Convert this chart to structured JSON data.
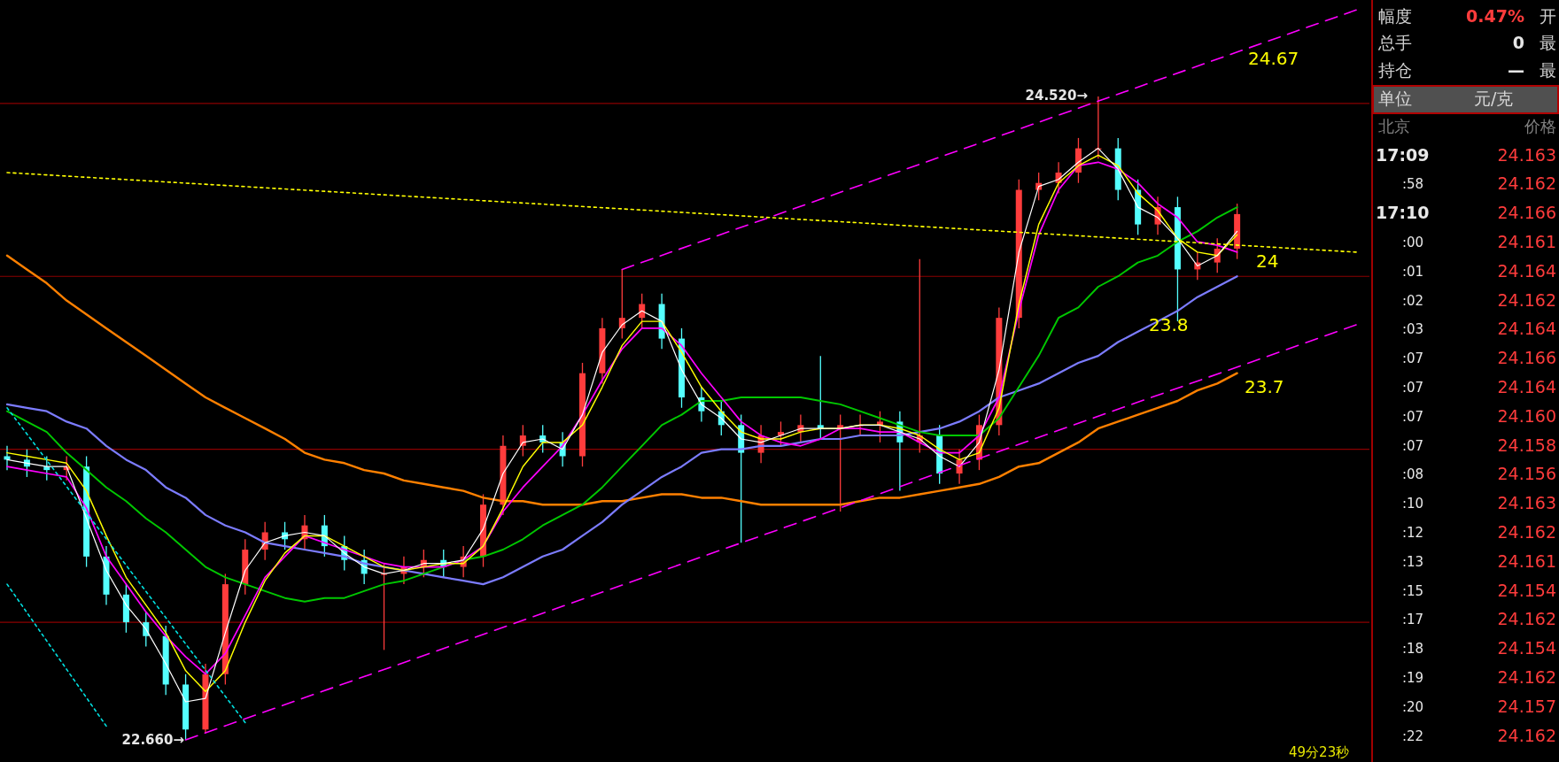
{
  "chart_data": [
    {
      "type": "candlestick",
      "categories": [
        null,
        null,
        null,
        null,
        null,
        null,
        null,
        null,
        null,
        null,
        null,
        null,
        null,
        null,
        null,
        null,
        null,
        null,
        null,
        null,
        null,
        null,
        null,
        null,
        null,
        null,
        null,
        null,
        null,
        null,
        null,
        null,
        null,
        null,
        null,
        null,
        null,
        null,
        null,
        null,
        null,
        null,
        null,
        null,
        null,
        null,
        null,
        null,
        null,
        null,
        null,
        null,
        null,
        null,
        null,
        null,
        null,
        null,
        null,
        null,
        null,
        null,
        null,
        null,
        null,
        null,
        null,
        null,
        null
      ],
      "ohlc": [
        [
          23.48,
          23.51,
          23.44,
          23.47
        ],
        [
          23.47,
          23.5,
          23.42,
          23.45
        ],
        [
          23.45,
          23.48,
          23.41,
          23.44
        ],
        [
          23.44,
          23.48,
          23.41,
          23.45
        ],
        [
          23.45,
          23.48,
          23.16,
          23.19
        ],
        [
          23.19,
          23.22,
          23.05,
          23.08
        ],
        [
          23.08,
          23.11,
          22.97,
          23.0
        ],
        [
          23.0,
          23.03,
          22.93,
          22.96
        ],
        [
          22.96,
          22.99,
          22.79,
          22.82
        ],
        [
          22.82,
          22.85,
          22.66,
          22.69
        ],
        [
          22.69,
          22.88,
          22.68,
          22.85
        ],
        [
          22.85,
          23.14,
          22.82,
          23.11
        ],
        [
          23.11,
          23.24,
          23.08,
          23.21
        ],
        [
          23.21,
          23.29,
          23.18,
          23.26
        ],
        [
          23.26,
          23.29,
          23.21,
          23.24
        ],
        [
          23.24,
          23.31,
          23.21,
          23.28
        ],
        [
          23.28,
          23.31,
          23.19,
          23.22
        ],
        [
          23.22,
          23.25,
          23.15,
          23.18
        ],
        [
          23.18,
          23.21,
          23.11,
          23.14
        ],
        [
          23.14,
          23.17,
          22.92,
          23.14
        ],
        [
          23.14,
          23.19,
          23.11,
          23.16
        ],
        [
          23.16,
          23.21,
          23.13,
          23.18
        ],
        [
          23.18,
          23.21,
          23.13,
          23.16
        ],
        [
          23.16,
          23.22,
          23.13,
          23.19
        ],
        [
          23.19,
          23.37,
          23.16,
          23.34
        ],
        [
          23.34,
          23.54,
          23.31,
          23.51
        ],
        [
          23.51,
          23.57,
          23.48,
          23.54
        ],
        [
          23.54,
          23.57,
          23.49,
          23.52
        ],
        [
          23.52,
          23.55,
          23.45,
          23.48
        ],
        [
          23.48,
          23.75,
          23.45,
          23.72
        ],
        [
          23.72,
          23.88,
          23.69,
          23.85
        ],
        [
          23.85,
          24.02,
          23.82,
          23.88
        ],
        [
          23.88,
          23.95,
          23.85,
          23.92
        ],
        [
          23.92,
          23.95,
          23.79,
          23.82
        ],
        [
          23.82,
          23.85,
          23.62,
          23.65
        ],
        [
          23.65,
          23.68,
          23.58,
          23.61
        ],
        [
          23.61,
          23.64,
          23.54,
          23.57
        ],
        [
          23.57,
          23.6,
          23.23,
          23.49
        ],
        [
          23.49,
          23.57,
          23.46,
          23.54
        ],
        [
          23.54,
          23.58,
          23.51,
          23.55
        ],
        [
          23.55,
          23.6,
          23.52,
          23.57
        ],
        [
          23.57,
          23.77,
          23.53,
          23.56
        ],
        [
          23.56,
          23.6,
          23.32,
          23.57
        ],
        [
          23.57,
          23.6,
          23.54,
          23.57
        ],
        [
          23.57,
          23.61,
          23.52,
          23.58
        ],
        [
          23.58,
          23.61,
          23.38,
          23.52
        ],
        [
          23.52,
          24.05,
          23.49,
          23.54
        ],
        [
          23.54,
          23.57,
          23.4,
          23.43
        ],
        [
          23.43,
          23.5,
          23.4,
          23.47
        ],
        [
          23.47,
          23.6,
          23.44,
          23.57
        ],
        [
          23.57,
          23.91,
          23.54,
          23.88
        ],
        [
          23.88,
          24.28,
          23.85,
          24.25
        ],
        [
          24.25,
          24.3,
          24.22,
          24.27
        ],
        [
          24.27,
          24.33,
          24.24,
          24.3
        ],
        [
          24.3,
          24.4,
          24.27,
          24.37
        ],
        [
          24.37,
          24.52,
          24.34,
          24.37
        ],
        [
          24.37,
          24.4,
          24.22,
          24.25
        ],
        [
          24.25,
          24.28,
          24.12,
          24.15
        ],
        [
          24.15,
          24.23,
          24.12,
          24.2
        ],
        [
          24.2,
          24.23,
          23.87,
          24.02
        ],
        [
          24.02,
          24.07,
          23.99,
          24.04
        ],
        [
          24.04,
          24.11,
          24.01,
          24.08
        ],
        [
          24.08,
          24.21,
          24.05,
          24.18
        ],
        null,
        null,
        null,
        null,
        null,
        null
      ],
      "series": [
        {
          "type": "line",
          "color": "#ff8000",
          "values": [
            24.06,
            24.02,
            23.98,
            23.93,
            23.89,
            23.85,
            23.81,
            23.77,
            23.73,
            23.69,
            23.65,
            23.62,
            23.59,
            23.56,
            23.53,
            23.49,
            23.47,
            23.46,
            23.44,
            23.43,
            23.41,
            23.4,
            23.39,
            23.38,
            23.36,
            23.35,
            23.35,
            23.34,
            23.34,
            23.34,
            23.35,
            23.35,
            23.36,
            23.37,
            23.37,
            23.36,
            23.36,
            23.35,
            23.34,
            23.34,
            23.34,
            23.34,
            23.34,
            23.35,
            23.36,
            23.36,
            23.37,
            23.38,
            23.39,
            23.4,
            23.42,
            23.45,
            23.46,
            23.49,
            23.52,
            23.56,
            23.58,
            23.6,
            23.62,
            23.64,
            23.67,
            23.69,
            23.72,
            null,
            null,
            null,
            null,
            null,
            null
          ]
        },
        {
          "type": "line",
          "color": "#7c7cff",
          "values": [
            23.63,
            23.62,
            23.61,
            23.58,
            23.56,
            23.51,
            23.47,
            23.44,
            23.39,
            23.36,
            23.31,
            23.28,
            23.26,
            23.23,
            23.22,
            23.21,
            23.2,
            23.19,
            23.17,
            23.16,
            23.15,
            23.14,
            23.13,
            23.12,
            23.11,
            23.13,
            23.16,
            23.19,
            23.21,
            23.25,
            23.29,
            23.34,
            23.38,
            23.42,
            23.45,
            23.49,
            23.5,
            23.5,
            23.51,
            23.51,
            23.52,
            23.53,
            23.53,
            23.54,
            23.54,
            23.54,
            23.55,
            23.56,
            23.58,
            23.61,
            23.65,
            23.67,
            23.69,
            23.72,
            23.75,
            23.77,
            23.81,
            23.84,
            23.87,
            23.9,
            23.94,
            23.97,
            24.0,
            null,
            null,
            null,
            null,
            null,
            null
          ]
        },
        {
          "type": "line",
          "color": "#00c800",
          "values": [
            23.61,
            23.58,
            23.55,
            23.49,
            23.44,
            23.39,
            23.35,
            23.3,
            23.26,
            23.21,
            23.16,
            23.13,
            23.11,
            23.09,
            23.07,
            23.06,
            23.07,
            23.07,
            23.09,
            23.11,
            23.12,
            23.14,
            23.16,
            23.18,
            23.19,
            23.21,
            23.24,
            23.28,
            23.31,
            23.34,
            23.39,
            23.45,
            23.51,
            23.57,
            23.6,
            23.64,
            23.64,
            23.65,
            23.65,
            23.65,
            23.65,
            23.64,
            23.63,
            23.61,
            23.59,
            23.57,
            23.55,
            23.54,
            23.54,
            23.54,
            23.59,
            23.68,
            23.77,
            23.88,
            23.91,
            23.97,
            24.0,
            24.04,
            24.06,
            24.1,
            24.13,
            24.17,
            24.2,
            null,
            null,
            null,
            null,
            null,
            null
          ]
        },
        {
          "type": "line",
          "color": "#ff00ff",
          "values": [
            23.45,
            23.44,
            23.43,
            23.42,
            23.33,
            23.19,
            23.11,
            23.03,
            22.96,
            22.9,
            22.85,
            22.91,
            23.02,
            23.13,
            23.19,
            23.25,
            23.23,
            23.21,
            23.19,
            23.17,
            23.16,
            23.16,
            23.16,
            23.18,
            23.22,
            23.32,
            23.39,
            23.45,
            23.51,
            23.6,
            23.7,
            23.79,
            23.85,
            23.85,
            23.8,
            23.72,
            23.65,
            23.58,
            23.54,
            23.52,
            23.51,
            23.53,
            23.56,
            23.56,
            23.55,
            23.55,
            23.52,
            23.49,
            23.49,
            23.54,
            23.65,
            23.9,
            24.12,
            24.25,
            24.32,
            24.33,
            24.31,
            24.27,
            24.21,
            24.17,
            24.1,
            24.09,
            24.07,
            null,
            null,
            null,
            null,
            null,
            null
          ]
        },
        {
          "type": "line",
          "color": "#ffff00",
          "values": [
            23.49,
            23.48,
            23.47,
            23.46,
            23.38,
            23.25,
            23.13,
            23.05,
            22.97,
            22.86,
            22.8,
            22.86,
            23.0,
            23.12,
            23.2,
            23.25,
            23.25,
            23.22,
            23.19,
            23.16,
            23.15,
            23.16,
            23.17,
            23.17,
            23.22,
            23.33,
            23.45,
            23.52,
            23.52,
            23.57,
            23.68,
            23.8,
            23.87,
            23.87,
            23.78,
            23.68,
            23.61,
            23.55,
            23.53,
            23.53,
            23.55,
            23.56,
            23.56,
            23.57,
            23.57,
            23.56,
            23.54,
            23.5,
            23.47,
            23.49,
            23.62,
            23.92,
            24.15,
            24.27,
            24.32,
            24.35,
            24.32,
            24.24,
            24.19,
            24.11,
            24.07,
            24.06,
            24.12,
            null,
            null,
            null,
            null,
            null,
            null
          ]
        },
        {
          "type": "line",
          "color": "#ffffff",
          "values": [
            23.47,
            23.46,
            23.45,
            23.45,
            23.3,
            23.15,
            23.05,
            22.98,
            22.88,
            22.77,
            22.78,
            22.97,
            23.15,
            23.23,
            23.25,
            23.26,
            23.25,
            23.2,
            23.16,
            23.14,
            23.15,
            23.17,
            23.17,
            23.18,
            23.27,
            23.43,
            23.52,
            23.53,
            23.5,
            23.6,
            23.78,
            23.86,
            23.9,
            23.87,
            23.73,
            23.63,
            23.59,
            23.53,
            23.52,
            23.54,
            23.56,
            23.56,
            23.56,
            23.57,
            23.57,
            23.55,
            23.53,
            23.48,
            23.45,
            23.52,
            23.73,
            24.07,
            24.26,
            24.28,
            24.33,
            24.37,
            24.31,
            24.2,
            24.17,
            24.11,
            24.03,
            24.06,
            24.13,
            null,
            null,
            null,
            null,
            null,
            null
          ]
        },
        {
          "type": "line",
          "color": "#ff00ff",
          "line_style": "dashed",
          "values": [
            null,
            null,
            null,
            null,
            null,
            null,
            null,
            null,
            null,
            null,
            null,
            null,
            null,
            null,
            null,
            null,
            null,
            null,
            null,
            null,
            null,
            null,
            null,
            null,
            null,
            null,
            null,
            null,
            null,
            null,
            null,
            24.02,
            null,
            null,
            null,
            null,
            null,
            null,
            null,
            null,
            null,
            null,
            null,
            null,
            null,
            null,
            null,
            null,
            null,
            null,
            null,
            null,
            null,
            null,
            null,
            null,
            null,
            null,
            null,
            null,
            null,
            null,
            null,
            null,
            null,
            null,
            null,
            null,
            24.77
          ]
        },
        {
          "type": "line",
          "color": "#ff00ff",
          "line_style": "dashed",
          "values": [
            null,
            null,
            null,
            null,
            null,
            null,
            null,
            null,
            null,
            22.66,
            null,
            null,
            null,
            null,
            null,
            null,
            null,
            null,
            null,
            null,
            null,
            null,
            null,
            null,
            null,
            null,
            null,
            null,
            null,
            null,
            null,
            null,
            null,
            null,
            null,
            null,
            null,
            null,
            null,
            null,
            null,
            null,
            null,
            null,
            null,
            null,
            null,
            null,
            null,
            null,
            null,
            null,
            null,
            null,
            null,
            null,
            null,
            null,
            null,
            null,
            null,
            null,
            null,
            null,
            null,
            null,
            null,
            null,
            23.86
          ]
        },
        {
          "type": "line",
          "color": "#ffff00",
          "line_style": "dotted",
          "values": [
            24.3,
            null,
            null,
            null,
            null,
            null,
            null,
            null,
            null,
            null,
            null,
            null,
            null,
            null,
            null,
            null,
            null,
            null,
            null,
            null,
            null,
            null,
            null,
            null,
            null,
            null,
            null,
            null,
            null,
            null,
            null,
            null,
            null,
            null,
            null,
            null,
            null,
            null,
            null,
            null,
            null,
            null,
            null,
            null,
            null,
            null,
            null,
            null,
            null,
            null,
            null,
            null,
            null,
            null,
            null,
            null,
            null,
            null,
            null,
            null,
            null,
            null,
            null,
            null,
            null,
            null,
            null,
            null,
            24.07
          ]
        },
        {
          "type": "line",
          "color": "#00e0e0",
          "line_style": "dotted",
          "values": [
            23.62,
            null,
            null,
            null,
            null,
            null,
            null,
            null,
            null,
            null,
            null,
            null,
            22.71,
            null,
            null,
            null,
            null,
            null,
            null,
            null,
            null,
            null,
            null,
            null,
            null,
            null,
            null,
            null,
            null,
            null,
            null,
            null,
            null,
            null,
            null,
            null,
            null,
            null,
            null,
            null,
            null,
            null,
            null,
            null,
            null,
            null,
            null,
            null,
            null,
            null,
            null,
            null,
            null,
            null,
            null,
            null,
            null,
            null,
            null,
            null,
            null,
            null,
            null,
            null,
            null,
            null,
            null,
            null,
            null
          ]
        },
        {
          "type": "line",
          "color": "#00e0e0",
          "line_style": "dotted",
          "values": [
            23.11,
            null,
            null,
            null,
            null,
            22.7,
            null,
            null,
            null,
            null,
            null,
            null,
            null,
            null,
            null,
            null,
            null,
            null,
            null,
            null,
            null,
            null,
            null,
            null,
            null,
            null,
            null,
            null,
            null,
            null,
            null,
            null,
            null,
            null,
            null,
            null,
            null,
            null,
            null,
            null,
            null,
            null,
            null,
            null,
            null,
            null,
            null,
            null,
            null,
            null,
            null,
            null,
            null,
            null,
            null,
            null,
            null,
            null,
            null,
            null,
            null,
            null,
            null,
            null,
            null,
            null,
            null,
            null,
            null
          ]
        }
      ],
      "ref_lines": [
        {
          "axis": "y",
          "value": 24.5,
          "color": "#8b0000"
        },
        {
          "axis": "y",
          "value": 24.0,
          "color": "#8b0000"
        },
        {
          "axis": "y",
          "value": 23.5,
          "color": "#8b0000"
        },
        {
          "axis": "y",
          "value": 23.0,
          "color": "#8b0000"
        }
      ],
      "annotations": [
        "24.520→",
        "22.660→",
        "24.67",
        "24",
        "23.8",
        "23.7",
        "49分23秒"
      ]
    },
    {
      "type": "other",
      "annotations": [
        "幅度",
        "0.47%",
        "开",
        "总手",
        "0",
        "最",
        "持仓",
        "—",
        "最",
        "单位",
        "元/克",
        "北京",
        "价格",
        "17:09",
        "24.163",
        ":58",
        "24.162",
        "17:10",
        "24.166",
        ":00",
        "24.161",
        ":01",
        "24.164",
        ":02",
        "24.162",
        ":03",
        "24.164",
        ":07",
        "24.166",
        ":07",
        "24.164",
        ":07",
        "24.160",
        ":07",
        "24.158",
        ":08",
        "24.156",
        ":10",
        "24.163",
        ":12",
        "24.162",
        ":13",
        "24.161",
        ":15",
        "24.154",
        ":17",
        "24.162",
        ":18",
        "24.154",
        ":19",
        "24.162",
        ":20",
        "24.157",
        ":22",
        "24.162"
      ]
    }
  ]
}
